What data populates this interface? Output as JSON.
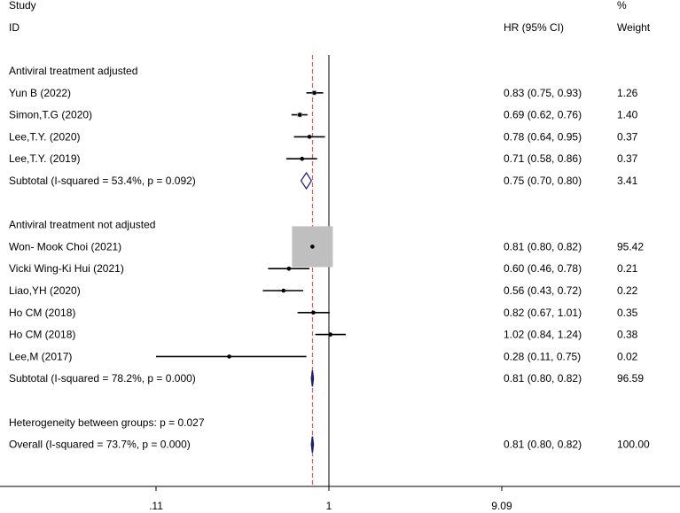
{
  "chart_data": {
    "type": "forest",
    "x_scale": "log",
    "null_line": 1,
    "overall_line": 0.81,
    "x_ticks": [
      {
        "value": 0.11,
        "label": ".11"
      },
      {
        "value": 1,
        "label": "1"
      },
      {
        "value": 9.09,
        "label": "9.09"
      }
    ],
    "headers": {
      "study_line1": "Study",
      "study_line2": "ID",
      "hr": "HR (95% CI)",
      "weight_line1": "%",
      "weight_line2": "Weight"
    },
    "rows": [
      {
        "kind": "group",
        "label": "Antiviral treatment adjusted"
      },
      {
        "kind": "study",
        "label": "Yun B (2022)",
        "hr": 0.83,
        "lo": 0.75,
        "hi": 0.93,
        "ci_text": "0.83 (0.75, 0.93)",
        "weight": 1.26,
        "weight_text": "1.26"
      },
      {
        "kind": "study",
        "label": "Simon,T.G (2020)",
        "hr": 0.69,
        "lo": 0.62,
        "hi": 0.76,
        "ci_text": "0.69 (0.62, 0.76)",
        "weight": 1.4,
        "weight_text": "1.40"
      },
      {
        "kind": "study",
        "label": "Lee,T.Y. (2020)",
        "hr": 0.78,
        "lo": 0.64,
        "hi": 0.95,
        "ci_text": "0.78 (0.64, 0.95)",
        "weight": 0.37,
        "weight_text": "0.37"
      },
      {
        "kind": "study",
        "label": "Lee,T.Y. (2019)",
        "hr": 0.71,
        "lo": 0.58,
        "hi": 0.86,
        "ci_text": "0.71 (0.58, 0.86)",
        "weight": 0.37,
        "weight_text": "0.37"
      },
      {
        "kind": "subtotal",
        "label": "Subtotal  (I-squared = 53.4%, p = 0.092)",
        "hr": 0.75,
        "lo": 0.7,
        "hi": 0.8,
        "ci_text": "0.75 (0.70, 0.80)",
        "weight": 3.41,
        "weight_text": "3.41",
        "diamond": "hollow"
      },
      {
        "kind": "blank"
      },
      {
        "kind": "group",
        "label": "Antiviral treatment not adjusted"
      },
      {
        "kind": "study",
        "label": "Won- Mook Choi (2021)",
        "hr": 0.81,
        "lo": 0.8,
        "hi": 0.82,
        "ci_text": "0.81 (0.80, 0.82)",
        "weight": 95.42,
        "weight_text": "95.42"
      },
      {
        "kind": "study",
        "label": "Vicki Wing-Ki Hui (2021)",
        "hr": 0.6,
        "lo": 0.46,
        "hi": 0.78,
        "ci_text": "0.60 (0.46, 0.78)",
        "weight": 0.21,
        "weight_text": "0.21"
      },
      {
        "kind": "study",
        "label": "Liao,YH (2020)",
        "hr": 0.56,
        "lo": 0.43,
        "hi": 0.72,
        "ci_text": "0.56 (0.43, 0.72)",
        "weight": 0.22,
        "weight_text": "0.22"
      },
      {
        "kind": "study",
        "label": "Ho CM (2018)",
        "hr": 0.82,
        "lo": 0.67,
        "hi": 1.01,
        "ci_text": "0.82 (0.67, 1.01)",
        "weight": 0.35,
        "weight_text": "0.35"
      },
      {
        "kind": "study",
        "label": "Ho CM (2018)",
        "hr": 1.02,
        "lo": 0.84,
        "hi": 1.24,
        "ci_text": "1.02 (0.84, 1.24)",
        "weight": 0.38,
        "weight_text": "0.38"
      },
      {
        "kind": "study",
        "label": "Lee,M (2017)",
        "hr": 0.28,
        "lo": 0.11,
        "hi": 0.75,
        "ci_text": "0.28 (0.11, 0.75)",
        "weight": 0.02,
        "weight_text": "0.02"
      },
      {
        "kind": "subtotal",
        "label": "Subtotal  (I-squared = 78.2%, p = 0.000)",
        "hr": 0.81,
        "lo": 0.8,
        "hi": 0.82,
        "ci_text": "0.81 (0.80, 0.82)",
        "weight": 96.59,
        "weight_text": "96.59",
        "diamond": "filled"
      },
      {
        "kind": "blank"
      },
      {
        "kind": "note",
        "label": "Heterogeneity between groups: p = 0.027"
      },
      {
        "kind": "overall",
        "label": "Overall  (I-squared = 73.7%, p = 0.000)",
        "hr": 0.81,
        "lo": 0.8,
        "hi": 0.82,
        "ci_text": "0.81 (0.80, 0.82)",
        "weight": 100.0,
        "weight_text": "100.00",
        "diamond": "filled"
      }
    ],
    "colors": {
      "text": "#000000",
      "line": "#000000",
      "weight_box": "#bfbfbf",
      "diamond_stroke": "#1f1f7a",
      "diamond_fill": "#1f1f7a",
      "reference_line": "#c05050"
    }
  }
}
